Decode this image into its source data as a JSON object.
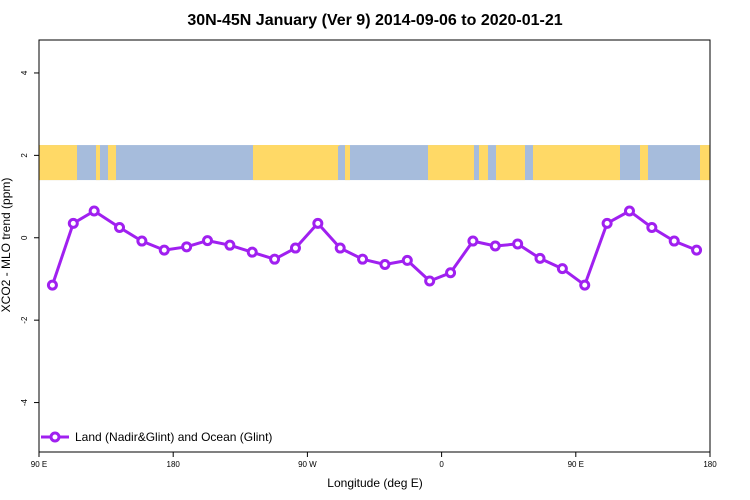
{
  "chart_data": {
    "type": "line",
    "title": "30N-45N January (Ver 9)   2014-09-06 to 2020-01-21",
    "xlabel": "Longitude (deg E)",
    "ylabel": "XCO2 - MLO trend (ppm)",
    "xlim": [
      90,
      540
    ],
    "ylim": [
      -5.2,
      4.8
    ],
    "x_ticks": [
      {
        "value": 90,
        "label": "90 E"
      },
      {
        "value": 180,
        "label": "180"
      },
      {
        "value": 270,
        "label": "90 W"
      },
      {
        "value": 360,
        "label": "0"
      },
      {
        "value": 450,
        "label": "90 E"
      },
      {
        "value": 540,
        "label": "180"
      }
    ],
    "y_ticks": [
      {
        "value": -4,
        "label": "-4"
      },
      {
        "value": -2,
        "label": "-2"
      },
      {
        "value": 0,
        "label": "0"
      },
      {
        "value": 2,
        "label": "2"
      },
      {
        "value": 4,
        "label": "4"
      }
    ],
    "grid": false,
    "legend_position": "bottom-left",
    "map_band": {
      "y_min": 1.4,
      "y_max": 2.25,
      "land_color": "#FFD966",
      "ocean_color": "#A6BCDC"
    },
    "series": [
      {
        "name": "Land (Nadir&Glint) and Ocean (Glint)",
        "color": "#A020F0",
        "x": [
          99,
          113,
          127,
          144,
          159,
          174,
          189,
          203,
          218,
          233,
          248,
          262,
          277,
          292,
          307,
          322,
          337,
          352,
          366,
          381,
          396,
          411,
          426,
          441,
          456,
          471,
          486,
          501,
          516,
          531
        ],
        "y": [
          -1.15,
          0.35,
          0.65,
          0.25,
          -0.08,
          -0.3,
          -0.22,
          -0.07,
          -0.18,
          -0.35,
          -0.52,
          -0.25,
          0.35,
          -0.25,
          -0.52,
          -0.65,
          -0.55,
          -1.05,
          -0.85,
          -0.08,
          -0.2,
          -0.15,
          -0.5,
          -0.75,
          -1.15,
          0.35,
          0.65,
          0.25,
          -0.08,
          -0.3
        ]
      }
    ]
  }
}
